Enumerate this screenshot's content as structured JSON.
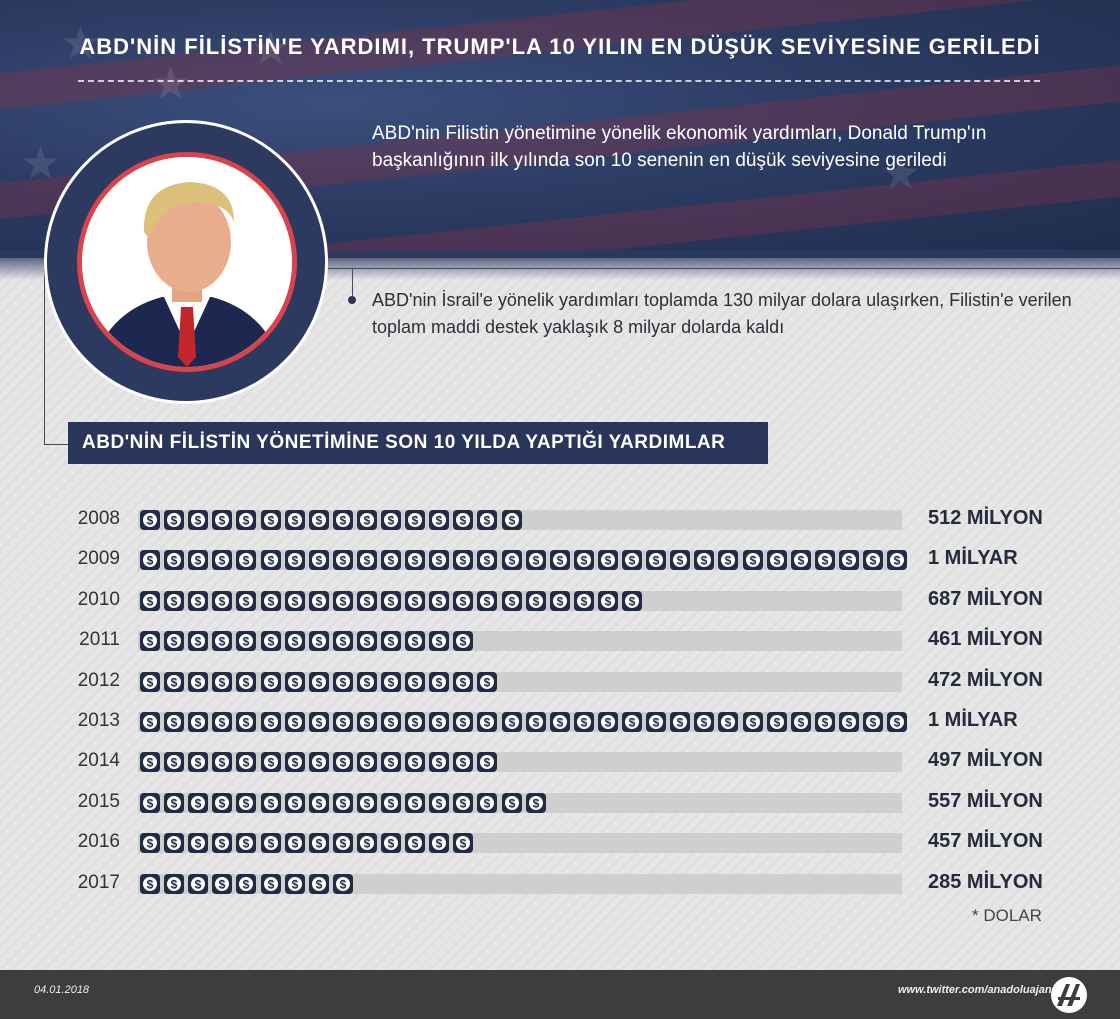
{
  "header": {
    "title": "ABD'NİN FİLİSTİN'E YARDIMI, TRUMP'LA 10 YILIN EN DÜŞÜK SEVİYESİNE GERİLEDİ",
    "intro": "ABD'nin Filistin yönetimine yönelik ekonomik yardımları, Donald Trump'ın başkanlığının ilk yılında son 10 senenin en düşük seviyesine geriledi"
  },
  "note": "ABD'nin  İsrail'e yönelik yardımları toplamda 130 milyar dolara ulaşırken, Filistin'e verilen toplam maddi destek yaklaşık 8 milyar dolarda kaldı",
  "colors": {
    "navy": "#29365a",
    "red_ring": "#d9434b",
    "track": "#cfcfcf",
    "coin": "#222b45"
  },
  "icons": {
    "coin": "dollar-coin-icon",
    "logo": "aa-logo-icon"
  },
  "chart_data": {
    "type": "bar",
    "title": "ABD'NİN FİLİSTİN YÖNETİMİNE SON 10 YILDA YAPTIĞI YARDIMLAR",
    "unit": "* DOLAR",
    "categories": [
      "2008",
      "2009",
      "2010",
      "2011",
      "2012",
      "2013",
      "2014",
      "2015",
      "2016",
      "2017"
    ],
    "values": [
      512,
      1000,
      687,
      461,
      472,
      1000,
      497,
      557,
      457,
      285
    ],
    "value_labels": [
      "512 MİLYON",
      "1 MİLYAR",
      "687 MİLYON",
      "461 MİLYON",
      "472 MİLYON",
      "1 MİLYAR",
      "497 MİLYON",
      "557 MİLYON",
      "457 MİLYON",
      "285 MİLYON"
    ],
    "coins": [
      16,
      32,
      21,
      14,
      15,
      32,
      15,
      17,
      14,
      9
    ],
    "ylim": [
      0,
      1000
    ]
  },
  "footer": {
    "date": "04.01.2018",
    "twitter": "www.twitter.com/anadoluajansi"
  }
}
